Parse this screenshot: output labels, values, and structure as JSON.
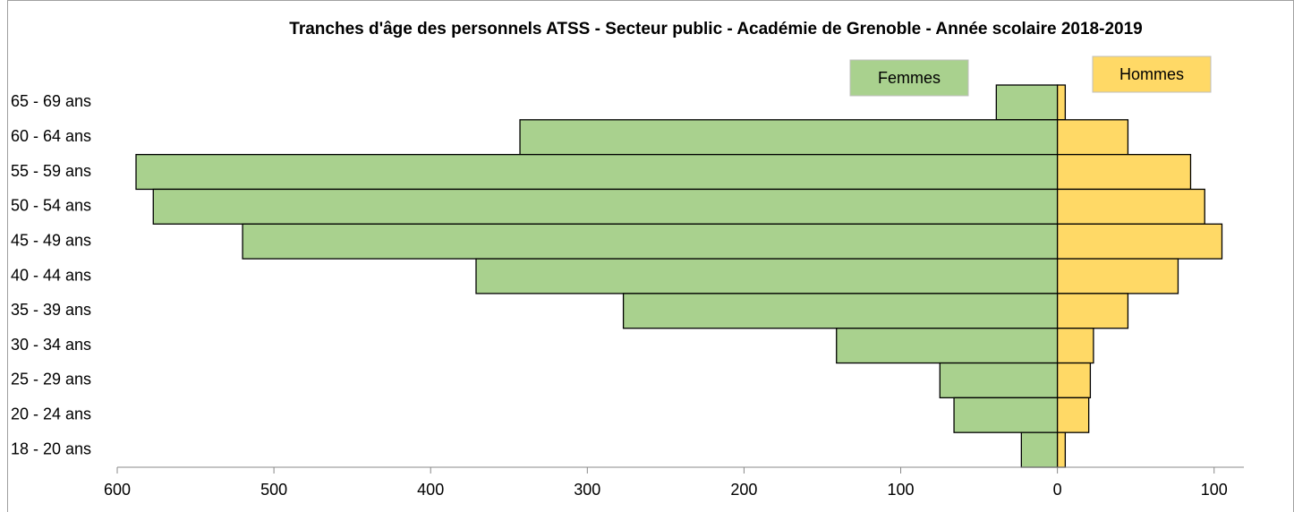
{
  "chart_data": {
    "type": "pyramid",
    "title": "Tranches d'âge des personnels ATSS - Secteur public - Académie de Grenoble - Année scolaire 2018-2019",
    "categories": [
      "65 - 69 ans",
      "60 - 64 ans",
      "55 - 59 ans",
      "50 - 54 ans",
      "45 - 49 ans",
      "40 - 44 ans",
      "35 - 39 ans",
      "30 - 34 ans",
      "25 - 29 ans",
      "20 - 24 ans",
      "18 - 20 ans"
    ],
    "series": [
      {
        "name": "Femmes",
        "color": "#a9d18e",
        "side": "left",
        "values": [
          39,
          343,
          588,
          577,
          520,
          371,
          277,
          141,
          75,
          66,
          23
        ]
      },
      {
        "name": "Hommes",
        "color": "#ffd966",
        "side": "right",
        "values": [
          5,
          45,
          85,
          94,
          105,
          77,
          45,
          23,
          21,
          20,
          5
        ]
      }
    ],
    "xlim": [
      -600,
      119
    ],
    "xticks": [
      {
        "value": -600,
        "label": "600"
      },
      {
        "value": -500,
        "label": "500"
      },
      {
        "value": -400,
        "label": "400"
      },
      {
        "value": -300,
        "label": "300"
      },
      {
        "value": -200,
        "label": "200"
      },
      {
        "value": -100,
        "label": "100"
      },
      0,
      100
    ]
  }
}
